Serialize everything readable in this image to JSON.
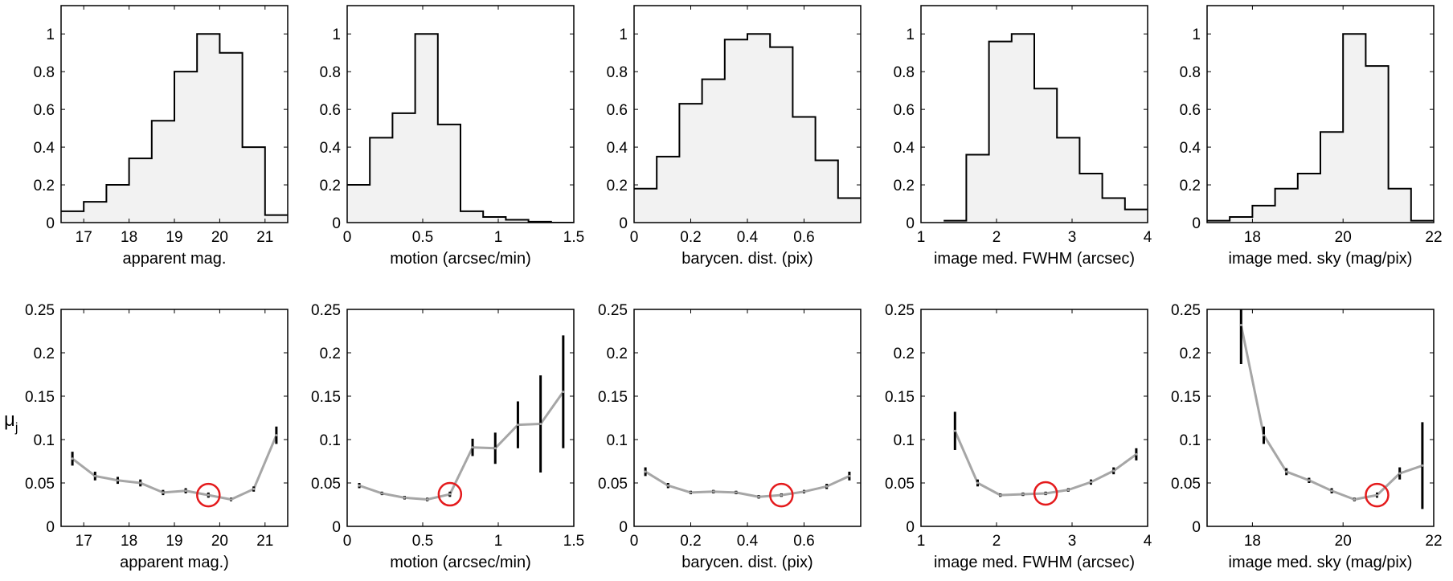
{
  "figure": {
    "ylabel_main": "μ",
    "ylabel_sub": "j",
    "colors": {
      "hist_fill": "#f2f2f2",
      "hist_line": "#000000",
      "series_line": "#a6a6a6",
      "errorbar": "#000000",
      "highlight": "#e41a1c",
      "frame": "#000000"
    }
  },
  "chart_data": [
    {
      "type": "histogram",
      "xlabel": "apparent mag.",
      "xlim": [
        16.5,
        21.5
      ],
      "ylim": [
        0,
        1.15
      ],
      "xticks": [
        17,
        18,
        19,
        20,
        21
      ],
      "xtick_labels": [
        "17",
        "18",
        "19",
        "20",
        "21"
      ],
      "yticks": [
        0,
        0.2,
        0.4,
        0.6,
        0.8,
        1
      ],
      "ytick_labels": [
        "0",
        "0.2",
        "0.4",
        "0.6",
        "0.8",
        "1"
      ],
      "bin_edges": [
        16.5,
        17.0,
        17.5,
        18.0,
        18.5,
        19.0,
        19.5,
        20.0,
        20.5,
        21.0,
        21.5
      ],
      "values": [
        0.06,
        0.11,
        0.2,
        0.34,
        0.54,
        0.8,
        1.0,
        0.9,
        0.4,
        0.04
      ]
    },
    {
      "type": "histogram",
      "xlabel": "motion (arcsec/min)",
      "xlim": [
        0,
        1.5
      ],
      "ylim": [
        0,
        1.15
      ],
      "xticks": [
        0,
        0.5,
        1,
        1.5
      ],
      "xtick_labels": [
        "0",
        "0.5",
        "1",
        "1.5"
      ],
      "yticks": [
        0,
        0.2,
        0.4,
        0.6,
        0.8,
        1
      ],
      "ytick_labels": [
        "0",
        "0.2",
        "0.4",
        "0.6",
        "0.8",
        "1"
      ],
      "bin_edges": [
        0,
        0.15,
        0.3,
        0.45,
        0.6,
        0.75,
        0.9,
        1.05,
        1.2,
        1.35,
        1.5
      ],
      "values": [
        0.2,
        0.45,
        0.58,
        1.0,
        0.52,
        0.06,
        0.03,
        0.015,
        0.005,
        0.0
      ]
    },
    {
      "type": "histogram",
      "xlabel": "barycen. dist. (pix)",
      "xlim": [
        0,
        0.8
      ],
      "ylim": [
        0,
        1.15
      ],
      "xticks": [
        0,
        0.2,
        0.4,
        0.6
      ],
      "xtick_labels": [
        "0",
        "0.2",
        "0.4",
        "0.6"
      ],
      "yticks": [
        0,
        0.2,
        0.4,
        0.6,
        0.8,
        1
      ],
      "ytick_labels": [
        "0",
        "0.2",
        "0.4",
        "0.6",
        "0.8",
        "1"
      ],
      "bin_edges": [
        0,
        0.08,
        0.16,
        0.24,
        0.32,
        0.4,
        0.48,
        0.56,
        0.64,
        0.72,
        0.8
      ],
      "values": [
        0.18,
        0.35,
        0.63,
        0.76,
        0.97,
        1.0,
        0.93,
        0.56,
        0.33,
        0.13
      ]
    },
    {
      "type": "histogram",
      "xlabel": "image med. FWHM (arcsec)",
      "xlim": [
        1,
        4
      ],
      "ylim": [
        0,
        1.15
      ],
      "xticks": [
        1,
        2,
        3,
        4
      ],
      "xtick_labels": [
        "1",
        "2",
        "3",
        "4"
      ],
      "yticks": [
        0,
        0.2,
        0.4,
        0.6,
        0.8,
        1
      ],
      "ytick_labels": [
        "0",
        "0.2",
        "0.4",
        "0.6",
        "0.8",
        "1"
      ],
      "bin_edges": [
        1.3,
        1.6,
        1.9,
        2.2,
        2.5,
        2.8,
        3.1,
        3.4,
        3.7,
        4.0
      ],
      "values": [
        0.01,
        0.36,
        0.96,
        1.0,
        0.71,
        0.45,
        0.26,
        0.13,
        0.07
      ]
    },
    {
      "type": "histogram",
      "xlabel": "image med. sky (mag/pix)",
      "xlim": [
        17,
        22
      ],
      "ylim": [
        0,
        1.15
      ],
      "xticks": [
        18,
        20,
        22
      ],
      "xtick_labels": [
        "18",
        "20",
        "22"
      ],
      "yticks": [
        0,
        0.2,
        0.4,
        0.6,
        0.8,
        1
      ],
      "ytick_labels": [
        "0",
        "0.2",
        "0.4",
        "0.6",
        "0.8",
        "1"
      ],
      "bin_edges": [
        17.0,
        17.5,
        18.0,
        18.5,
        19.0,
        19.5,
        20.0,
        20.5,
        21.0,
        21.5,
        22.0
      ],
      "values": [
        0.01,
        0.03,
        0.09,
        0.18,
        0.26,
        0.48,
        1.0,
        0.83,
        0.18,
        0.01
      ]
    },
    {
      "type": "line",
      "xlabel": "apparent mag.)",
      "xlim": [
        16.5,
        21.5
      ],
      "ylim": [
        0,
        0.25
      ],
      "xticks": [
        17,
        18,
        19,
        20,
        21
      ],
      "xtick_labels": [
        "17",
        "18",
        "19",
        "20",
        "21"
      ],
      "yticks": [
        0,
        0.05,
        0.1,
        0.15,
        0.2,
        0.25
      ],
      "ytick_labels": [
        "0",
        "0.05",
        "0.1",
        "0.15",
        "0.2",
        "0.25"
      ],
      "x": [
        16.75,
        17.25,
        17.75,
        18.25,
        18.75,
        19.25,
        19.75,
        20.25,
        20.75,
        21.25
      ],
      "y": [
        0.078,
        0.058,
        0.053,
        0.05,
        0.039,
        0.041,
        0.036,
        0.031,
        0.043,
        0.105
      ],
      "yerr": [
        0.008,
        0.005,
        0.004,
        0.004,
        0.003,
        0.003,
        0.003,
        0.002,
        0.003,
        0.01
      ],
      "highlight": {
        "x": 19.75,
        "y": 0.036
      }
    },
    {
      "type": "line",
      "xlabel": "motion (arcsec/min)",
      "xlim": [
        0,
        1.5
      ],
      "ylim": [
        0,
        0.25
      ],
      "xticks": [
        0,
        0.5,
        1,
        1.5
      ],
      "xtick_labels": [
        "0",
        "0.5",
        "1",
        "1.5"
      ],
      "yticks": [
        0,
        0.05,
        0.1,
        0.15,
        0.2,
        0.25
      ],
      "ytick_labels": [
        "0",
        "0.05",
        "0.1",
        "0.15",
        "0.2",
        "0.25"
      ],
      "x": [
        0.08,
        0.23,
        0.38,
        0.53,
        0.68,
        0.83,
        0.98,
        1.13,
        1.28,
        1.43
      ],
      "y": [
        0.047,
        0.038,
        0.033,
        0.031,
        0.037,
        0.091,
        0.09,
        0.117,
        0.118,
        0.155
      ],
      "yerr": [
        0.003,
        0.002,
        0.002,
        0.002,
        0.003,
        0.01,
        0.018,
        0.027,
        0.056,
        0.065
      ],
      "highlight": {
        "x": 0.68,
        "y": 0.037
      }
    },
    {
      "type": "line",
      "xlabel": "barycen. dist. (pix)",
      "xlim": [
        0,
        0.8
      ],
      "ylim": [
        0,
        0.25
      ],
      "xticks": [
        0,
        0.2,
        0.4,
        0.6
      ],
      "xtick_labels": [
        "0",
        "0.2",
        "0.4",
        "0.6"
      ],
      "yticks": [
        0,
        0.05,
        0.1,
        0.15,
        0.2,
        0.25
      ],
      "ytick_labels": [
        "0",
        "0.05",
        "0.1",
        "0.15",
        "0.2",
        "0.25"
      ],
      "x": [
        0.04,
        0.12,
        0.2,
        0.28,
        0.36,
        0.44,
        0.52,
        0.6,
        0.68,
        0.76
      ],
      "y": [
        0.063,
        0.047,
        0.039,
        0.04,
        0.039,
        0.034,
        0.036,
        0.04,
        0.046,
        0.058
      ],
      "yerr": [
        0.005,
        0.003,
        0.002,
        0.002,
        0.002,
        0.002,
        0.002,
        0.002,
        0.003,
        0.005
      ],
      "highlight": {
        "x": 0.52,
        "y": 0.036
      }
    },
    {
      "type": "line",
      "xlabel": "image med. FWHM (arcsec)",
      "xlim": [
        1,
        4
      ],
      "ylim": [
        0,
        0.25
      ],
      "xticks": [
        1,
        2,
        3,
        4
      ],
      "xtick_labels": [
        "1",
        "2",
        "3",
        "4"
      ],
      "yticks": [
        0,
        0.05,
        0.1,
        0.15,
        0.2,
        0.25
      ],
      "ytick_labels": [
        "0",
        "0.05",
        "0.1",
        "0.15",
        "0.2",
        "0.25"
      ],
      "x": [
        1.45,
        1.75,
        2.05,
        2.35,
        2.65,
        2.95,
        3.25,
        3.55,
        3.85
      ],
      "y": [
        0.11,
        0.05,
        0.036,
        0.037,
        0.038,
        0.042,
        0.051,
        0.064,
        0.083
      ],
      "yerr": [
        0.022,
        0.004,
        0.002,
        0.002,
        0.002,
        0.002,
        0.003,
        0.004,
        0.007
      ],
      "highlight": {
        "x": 2.65,
        "y": 0.038
      }
    },
    {
      "type": "line",
      "xlabel": "image med. sky (mag/pix)",
      "xlim": [
        17,
        22
      ],
      "ylim": [
        0,
        0.25
      ],
      "xticks": [
        18,
        20,
        22
      ],
      "xtick_labels": [
        "18",
        "20",
        "22"
      ],
      "yticks": [
        0,
        0.05,
        0.1,
        0.15,
        0.2,
        0.25
      ],
      "ytick_labels": [
        "0",
        "0.05",
        "0.1",
        "0.15",
        "0.2",
        "0.25"
      ],
      "x": [
        17.75,
        18.25,
        18.75,
        19.25,
        19.75,
        20.25,
        20.75,
        21.25,
        21.75
      ],
      "y": [
        0.232,
        0.105,
        0.063,
        0.053,
        0.041,
        0.031,
        0.036,
        0.061,
        0.07
      ],
      "yerr": [
        0.045,
        0.01,
        0.004,
        0.003,
        0.003,
        0.002,
        0.003,
        0.007,
        0.05
      ],
      "highlight": {
        "x": 20.75,
        "y": 0.036
      }
    }
  ]
}
